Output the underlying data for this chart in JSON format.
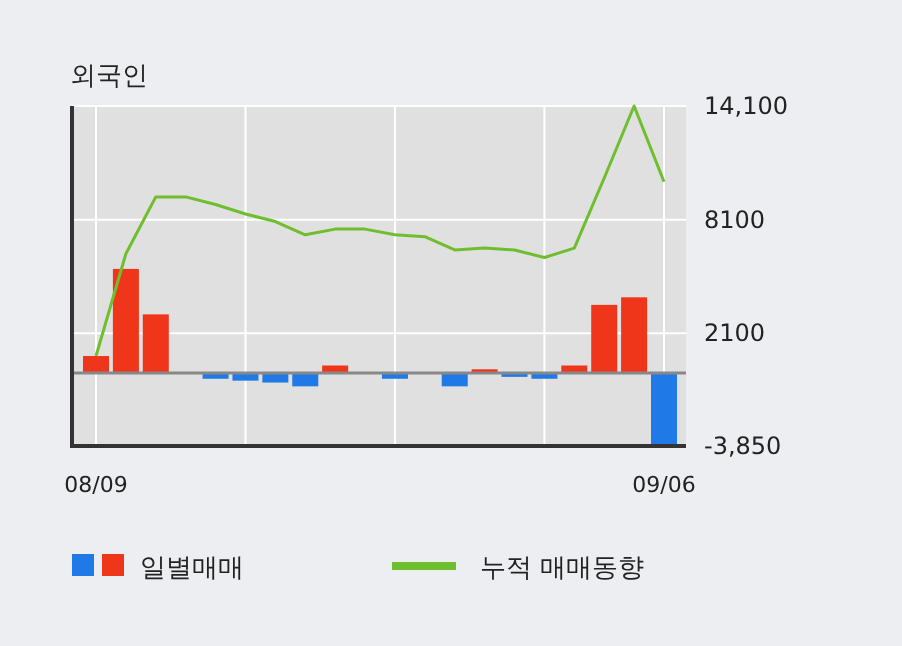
{
  "chart_data": {
    "type": "bar",
    "title": "외국인",
    "categories": [
      "08/09",
      null,
      null,
      null,
      null,
      null,
      null,
      null,
      null,
      null,
      null,
      null,
      null,
      null,
      null,
      null,
      null,
      null,
      null,
      "09/06"
    ],
    "series": [
      {
        "name": "일별매매",
        "values": [
          900,
          5500,
          3100,
          0,
          -300,
          -400,
          -500,
          -700,
          400,
          0,
          -300,
          0,
          -700,
          200,
          -200,
          -300,
          400,
          3600,
          4000,
          -3800
        ],
        "colors": [
          "#f0361a",
          "#f0361a",
          "#f0361a",
          "#f0361a",
          "#1f7ae8",
          "#1f7ae8",
          "#1f7ae8",
          "#1f7ae8",
          "#f0361a",
          "#f0361a",
          "#1f7ae8",
          "#f0361a",
          "#1f7ae8",
          "#f0361a",
          "#1f7ae8",
          "#1f7ae8",
          "#f0361a",
          "#f0361a",
          "#f0361a",
          "#1f7ae8"
        ]
      },
      {
        "name": "누적 매매동향",
        "type": "line",
        "color": "#6fbe2e",
        "values": [
          900,
          6300,
          9300,
          9300,
          8900,
          8400,
          8000,
          7300,
          7600,
          7600,
          7300,
          7200,
          6500,
          6600,
          6500,
          6100,
          6600,
          10300,
          14100,
          10100
        ]
      }
    ],
    "ylim": [
      -3850,
      14100
    ],
    "yticks": [
      {
        "value": 14100,
        "label": "14,100"
      },
      8100,
      2100,
      {
        "value": -3850,
        "label": "-3,850"
      }
    ],
    "grid": true,
    "legend": "bottom"
  }
}
